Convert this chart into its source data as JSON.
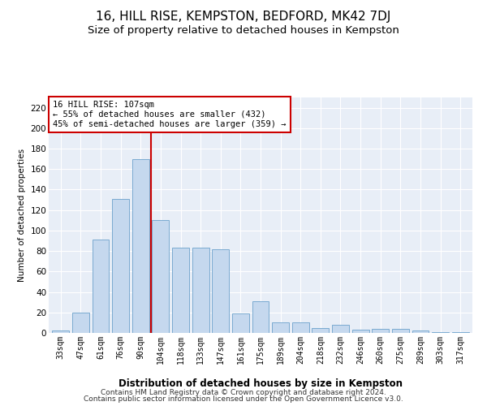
{
  "title": "16, HILL RISE, KEMPSTON, BEDFORD, MK42 7DJ",
  "subtitle": "Size of property relative to detached houses in Kempston",
  "xlabel": "Distribution of detached houses by size in Kempston",
  "ylabel": "Number of detached properties",
  "categories": [
    "33sqm",
    "47sqm",
    "61sqm",
    "76sqm",
    "90sqm",
    "104sqm",
    "118sqm",
    "133sqm",
    "147sqm",
    "161sqm",
    "175sqm",
    "189sqm",
    "204sqm",
    "218sqm",
    "232sqm",
    "246sqm",
    "260sqm",
    "275sqm",
    "289sqm",
    "303sqm",
    "317sqm"
  ],
  "values": [
    2,
    20,
    91,
    131,
    170,
    110,
    83,
    83,
    82,
    19,
    31,
    10,
    10,
    5,
    8,
    3,
    4,
    4,
    2,
    1,
    1
  ],
  "bar_color": "#c5d8ee",
  "bar_edge_color": "#7aaad0",
  "highlight_index": 4,
  "highlight_color": "#cc0000",
  "annotation_text": "16 HILL RISE: 107sqm\n← 55% of detached houses are smaller (432)\n45% of semi-detached houses are larger (359) →",
  "annotation_box_color": "#ffffff",
  "annotation_box_edge_color": "#cc0000",
  "ylim": [
    0,
    230
  ],
  "yticks": [
    0,
    20,
    40,
    60,
    80,
    100,
    120,
    140,
    160,
    180,
    200,
    220
  ],
  "bg_color": "#e8eef7",
  "footer_line1": "Contains HM Land Registry data © Crown copyright and database right 2024.",
  "footer_line2": "Contains public sector information licensed under the Open Government Licence v3.0.",
  "title_fontsize": 11,
  "subtitle_fontsize": 9.5,
  "annotation_fontsize": 7.5,
  "footer_fontsize": 6.5,
  "ylabel_fontsize": 7.5,
  "xlabel_fontsize": 8.5,
  "tick_fontsize": 7,
  "ytick_fontsize": 7.5
}
